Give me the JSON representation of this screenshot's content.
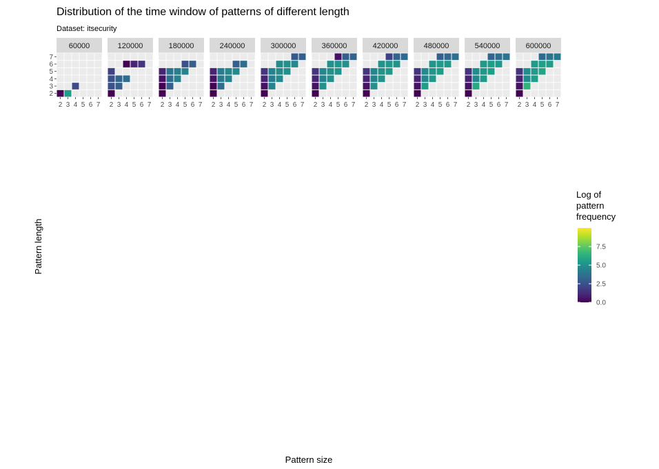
{
  "chart_data": {
    "type": "heatmap",
    "title": "Distribution of the time window of patterns of different length",
    "subtitle": "Dataset: itsecurity",
    "xlabel": "Pattern size",
    "ylabel": "Pattern length",
    "x_ticks": [
      "2",
      "3",
      "4",
      "5",
      "6",
      "7"
    ],
    "y_ticks": [
      "2",
      "3",
      "4",
      "5",
      "6",
      "7"
    ],
    "legend": {
      "title_lines": [
        "Log of",
        "pattern",
        "frequency"
      ],
      "ticks": [
        "0.0",
        "2.5",
        "5.0",
        "7.5"
      ],
      "tick_values": [
        0,
        2.5,
        5,
        7.5
      ],
      "range": [
        0,
        10
      ],
      "placement": "right",
      "colors": [
        "#440154",
        "#482878",
        "#3e4989",
        "#31688e",
        "#26828e",
        "#1f9e89",
        "#35b779",
        "#6ece58",
        "#b5de2b",
        "#fde725"
      ]
    },
    "panels": [
      {
        "window": "60000",
        "cells": [
          [
            2,
            2,
            0
          ],
          [
            3,
            2,
            5.5
          ],
          [
            4,
            3,
            2.3
          ]
        ]
      },
      {
        "window": "120000",
        "cells": [
          [
            2,
            2,
            0
          ],
          [
            2,
            3,
            2.5
          ],
          [
            2,
            4,
            2.5
          ],
          [
            2,
            5,
            2
          ],
          [
            3,
            3,
            3
          ],
          [
            3,
            4,
            3.2
          ],
          [
            4,
            4,
            3.5
          ],
          [
            4,
            6,
            0
          ],
          [
            5,
            6,
            1
          ],
          [
            6,
            6,
            1.5
          ]
        ]
      },
      {
        "window": "180000",
        "cells": [
          [
            2,
            2,
            0
          ],
          [
            2,
            3,
            0
          ],
          [
            2,
            4,
            0.5
          ],
          [
            2,
            5,
            1
          ],
          [
            3,
            3,
            3
          ],
          [
            3,
            4,
            3.5
          ],
          [
            3,
            5,
            3.8
          ],
          [
            4,
            4,
            4.5
          ],
          [
            4,
            5,
            4.3
          ],
          [
            5,
            5,
            4.5
          ],
          [
            5,
            6,
            2.5
          ],
          [
            6,
            6,
            3
          ]
        ]
      },
      {
        "window": "240000",
        "cells": [
          [
            2,
            2,
            0
          ],
          [
            2,
            3,
            0
          ],
          [
            2,
            4,
            0.5
          ],
          [
            2,
            5,
            1
          ],
          [
            3,
            3,
            3.5
          ],
          [
            3,
            4,
            4
          ],
          [
            3,
            5,
            4.2
          ],
          [
            4,
            4,
            4.5
          ],
          [
            4,
            5,
            4.6
          ],
          [
            5,
            5,
            4.7
          ],
          [
            5,
            6,
            3
          ],
          [
            6,
            6,
            3.5
          ]
        ]
      },
      {
        "window": "300000",
        "cells": [
          [
            2,
            2,
            0
          ],
          [
            2,
            3,
            0.5
          ],
          [
            2,
            4,
            1
          ],
          [
            2,
            5,
            1.5
          ],
          [
            3,
            3,
            4.5
          ],
          [
            3,
            4,
            4.2
          ],
          [
            3,
            5,
            4.4
          ],
          [
            4,
            4,
            4.8
          ],
          [
            4,
            5,
            4.9
          ],
          [
            4,
            6,
            4.8
          ],
          [
            5,
            5,
            5
          ],
          [
            5,
            6,
            5
          ],
          [
            6,
            6,
            4.7
          ],
          [
            6,
            7,
            2.8
          ],
          [
            7,
            7,
            3
          ]
        ]
      },
      {
        "window": "360000",
        "cells": [
          [
            2,
            2,
            0
          ],
          [
            2,
            3,
            0.5
          ],
          [
            2,
            4,
            1
          ],
          [
            2,
            5,
            1.5
          ],
          [
            3,
            3,
            5
          ],
          [
            3,
            4,
            4.5
          ],
          [
            3,
            5,
            4.6
          ],
          [
            4,
            4,
            5
          ],
          [
            4,
            5,
            5
          ],
          [
            4,
            6,
            5
          ],
          [
            5,
            5,
            5.2
          ],
          [
            5,
            6,
            5.2
          ],
          [
            6,
            6,
            5
          ],
          [
            5,
            7,
            0.5
          ],
          [
            6,
            7,
            3
          ],
          [
            7,
            7,
            3.2
          ]
        ]
      },
      {
        "window": "420000",
        "cells": [
          [
            2,
            2,
            0
          ],
          [
            2,
            3,
            0.5
          ],
          [
            2,
            4,
            1
          ],
          [
            2,
            5,
            1.5
          ],
          [
            3,
            3,
            5
          ],
          [
            3,
            4,
            4.5
          ],
          [
            3,
            5,
            4.6
          ],
          [
            4,
            4,
            5.1
          ],
          [
            4,
            5,
            5.1
          ],
          [
            4,
            6,
            5.1
          ],
          [
            5,
            5,
            5.3
          ],
          [
            5,
            6,
            5.3
          ],
          [
            6,
            6,
            5.1
          ],
          [
            5,
            7,
            2
          ],
          [
            6,
            7,
            3.2
          ],
          [
            7,
            7,
            3.4
          ]
        ]
      },
      {
        "window": "480000",
        "cells": [
          [
            2,
            2,
            0
          ],
          [
            2,
            3,
            0.5
          ],
          [
            2,
            4,
            1
          ],
          [
            2,
            5,
            1.5
          ],
          [
            3,
            3,
            5.5
          ],
          [
            3,
            4,
            4.6
          ],
          [
            3,
            5,
            4.7
          ],
          [
            4,
            4,
            5.3
          ],
          [
            4,
            5,
            5.2
          ],
          [
            4,
            6,
            5.2
          ],
          [
            5,
            5,
            5.5
          ],
          [
            5,
            6,
            5.4
          ],
          [
            6,
            6,
            5.3
          ],
          [
            5,
            7,
            3
          ],
          [
            6,
            7,
            3.4
          ],
          [
            7,
            7,
            3.6
          ]
        ]
      },
      {
        "window": "540000",
        "cells": [
          [
            2,
            2,
            0
          ],
          [
            2,
            3,
            0.5
          ],
          [
            2,
            4,
            1
          ],
          [
            2,
            5,
            1.5
          ],
          [
            3,
            3,
            6
          ],
          [
            3,
            4,
            4.7
          ],
          [
            3,
            5,
            4.8
          ],
          [
            4,
            4,
            5.4
          ],
          [
            4,
            5,
            5.3
          ],
          [
            4,
            6,
            5.3
          ],
          [
            5,
            5,
            5.6
          ],
          [
            5,
            6,
            5.5
          ],
          [
            6,
            6,
            5.4
          ],
          [
            5,
            7,
            3.2
          ],
          [
            6,
            7,
            3.6
          ],
          [
            7,
            7,
            3.8
          ]
        ]
      },
      {
        "window": "600000",
        "cells": [
          [
            2,
            2,
            0
          ],
          [
            2,
            3,
            0.5
          ],
          [
            2,
            4,
            1
          ],
          [
            2,
            5,
            1.5
          ],
          [
            3,
            3,
            6.5
          ],
          [
            3,
            4,
            4.8
          ],
          [
            3,
            5,
            4.9
          ],
          [
            4,
            4,
            5.6
          ],
          [
            4,
            5,
            5.4
          ],
          [
            4,
            6,
            5.4
          ],
          [
            5,
            5,
            5.8
          ],
          [
            5,
            6,
            5.6
          ],
          [
            6,
            6,
            5.5
          ],
          [
            5,
            7,
            3.4
          ],
          [
            6,
            7,
            3.8
          ],
          [
            7,
            7,
            4
          ]
        ]
      }
    ]
  }
}
